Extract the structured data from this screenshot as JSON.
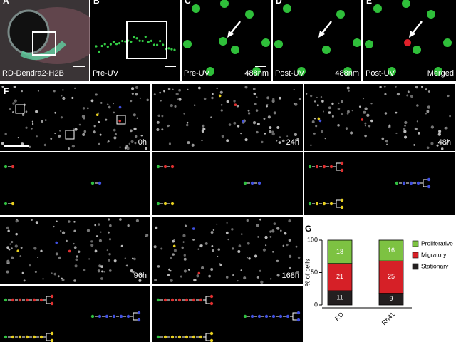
{
  "panels_top": [
    {
      "letter": "A",
      "labels": [
        "RD-Dendra2-H2B"
      ]
    },
    {
      "letter": "B",
      "labels": [
        "Pre-UV"
      ]
    },
    {
      "letter": "C",
      "labels": [
        "Pre-UV",
        "488nm"
      ]
    },
    {
      "letter": "D",
      "labels": [
        "Post-UV",
        "488nm"
      ]
    },
    {
      "letter": "E",
      "labels": [
        "Post-UV",
        "Merged"
      ]
    }
  ],
  "panel_f": {
    "letter": "F",
    "times": [
      "0h",
      "24h",
      "48h",
      "96h",
      "168h"
    ]
  },
  "chart_data": {
    "type": "bar",
    "stacked": true,
    "letter": "G",
    "ylabel": "% of cells",
    "categories": [
      "RD",
      "Rh41"
    ],
    "series": [
      {
        "name": "Stationary",
        "color": "#231f20",
        "values": [
          22,
          18
        ],
        "counts": [
          11,
          9
        ]
      },
      {
        "name": "Migratory",
        "color": "#d62027",
        "values": [
          42,
          50
        ],
        "counts": [
          21,
          25
        ]
      },
      {
        "name": "Proliferative",
        "color": "#7dc242",
        "values": [
          36,
          32
        ],
        "counts": [
          18,
          16
        ]
      }
    ],
    "ylim": [
      0,
      100
    ],
    "yticks": [
      0,
      50,
      100
    ],
    "legend": "right"
  }
}
